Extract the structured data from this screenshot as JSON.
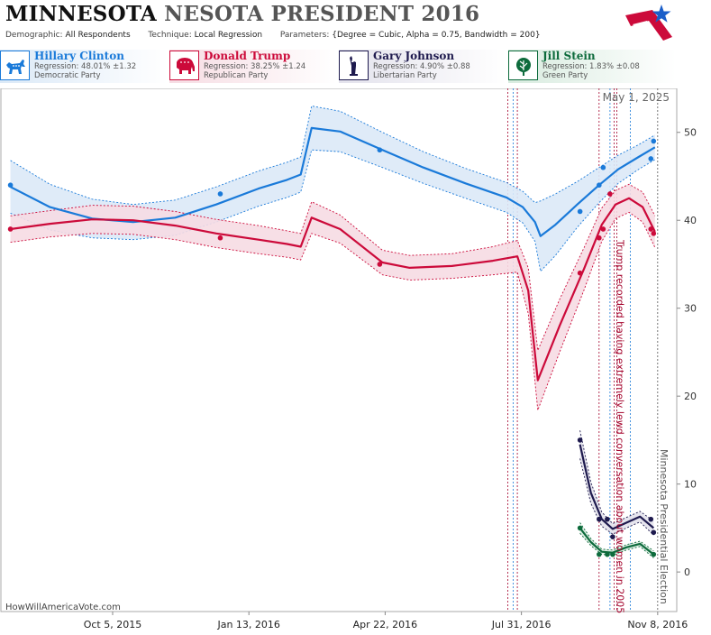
{
  "header": {
    "title_main": "MINNESOTA",
    "title_sub": "NESOTA PRESIDENT 2016",
    "demographic_label": "Demographic:",
    "demographic_value": "All Respondents",
    "technique_label": "Technique:",
    "technique_value": "Local Regression",
    "parameters_label": "Parameters:",
    "parameters_value": "{Degree = Cubic, Alpha = 0.75, Bandwidth = 200}"
  },
  "candidates": [
    {
      "name": "Hillary Clinton",
      "regression": "Regression: 48.01% ±1.32",
      "party": "Democratic Party",
      "color": "#1a7ad9",
      "icon": "donkey-icon"
    },
    {
      "name": "Donald Trump",
      "regression": "Regression: 38.25% ±1.24",
      "party": "Republican Party",
      "color": "#cc0a3a",
      "icon": "elephant-icon"
    },
    {
      "name": "Gary Johnson",
      "regression": "Regression: 4.90% ±0.88",
      "party": "Libertarian Party",
      "color": "#1e1a4e",
      "icon": "liberty-statue-icon"
    },
    {
      "name": "Jill Stein",
      "regression": "Regression: 1.83% ±0.08",
      "party": "Green Party",
      "color": "#0d6b3c",
      "icon": "leaf-icon"
    }
  ],
  "watermark": "HowWillAmericaVote.com",
  "chart_data": {
    "type": "line",
    "date_label": "May 1, 2025",
    "x_ticks": [
      "Oct 5, 2015",
      "Jan 13, 2016",
      "Apr 22, 2016",
      "Jul 31, 2016",
      "Nov 8, 2016"
    ],
    "xlim": [
      "2015-07-15",
      "2016-11-22"
    ],
    "ylim": [
      -4.5,
      55
    ],
    "y_ticks": [
      0,
      10,
      20,
      30,
      40,
      50
    ],
    "grid": false,
    "annotations": [
      {
        "text": "Trump recorded having extremely lewd conversation about women in 2005",
        "date": "2016-10-07",
        "color": "#a3002a"
      },
      {
        "text": "Minnesota Presidential Election",
        "date": "2016-11-08",
        "color": "#555555"
      }
    ],
    "event_lines": [
      {
        "date": "2016-07-21",
        "color": "#a3002a"
      },
      {
        "date": "2016-07-25",
        "color": "#1a7ad9"
      },
      {
        "date": "2016-07-28",
        "color": "#a3002a"
      },
      {
        "date": "2016-09-26",
        "color": "#a3002a"
      },
      {
        "date": "2016-10-04",
        "color": "#1a7ad9"
      },
      {
        "date": "2016-10-07",
        "color": "#a3002a"
      },
      {
        "date": "2016-10-09",
        "color": "#a3002a"
      },
      {
        "date": "2016-10-19",
        "color": "#1a7ad9"
      },
      {
        "date": "2016-11-08",
        "color": "#555555"
      }
    ],
    "series": [
      {
        "name": "Hillary Clinton",
        "color": "#1a7ad9",
        "band_color": "#dbe9f7",
        "points": [
          [
            "2015-07-22",
            44
          ],
          [
            "2015-12-23",
            43
          ],
          [
            "2016-04-18",
            48
          ],
          [
            "2016-09-12",
            41
          ],
          [
            "2016-09-26",
            44
          ],
          [
            "2016-09-29",
            46
          ],
          [
            "2016-11-03",
            47
          ],
          [
            "2016-11-05",
            49
          ]
        ],
        "fit": [
          [
            "2015-07-22",
            43.8
          ],
          [
            "2015-08-20",
            41.5
          ],
          [
            "2015-09-20",
            40.2
          ],
          [
            "2015-10-20",
            39.8
          ],
          [
            "2015-11-20",
            40.3
          ],
          [
            "2015-12-20",
            41.8
          ],
          [
            "2016-01-20",
            43.6
          ],
          [
            "2016-02-10",
            44.6
          ],
          [
            "2016-02-20",
            45.2
          ],
          [
            "2016-02-28",
            50.5
          ],
          [
            "2016-03-20",
            50.1
          ],
          [
            "2016-04-20",
            48.0
          ],
          [
            "2016-05-20",
            46.0
          ],
          [
            "2016-06-20",
            44.2
          ],
          [
            "2016-07-20",
            42.6
          ],
          [
            "2016-08-01",
            41.5
          ],
          [
            "2016-08-10",
            39.8
          ],
          [
            "2016-08-14",
            38.2
          ],
          [
            "2016-08-25",
            39.5
          ],
          [
            "2016-09-10",
            41.8
          ],
          [
            "2016-09-26",
            44.0
          ],
          [
            "2016-10-10",
            45.8
          ],
          [
            "2016-10-25",
            47.2
          ],
          [
            "2016-11-06",
            48.3
          ]
        ],
        "band": [
          3.0,
          2.6,
          2.2,
          2.0,
          2.0,
          2.0,
          2.0,
          2.0,
          2.0,
          2.5,
          2.3,
          2.0,
          1.8,
          1.7,
          1.7,
          1.8,
          2.2,
          4.0,
          3.5,
          2.6,
          2.0,
          1.6,
          1.4,
          1.4
        ]
      },
      {
        "name": "Donald Trump",
        "color": "#cc0a3a",
        "band_color": "#f6dce3",
        "points": [
          [
            "2015-07-22",
            39
          ],
          [
            "2015-12-23",
            38
          ],
          [
            "2016-04-18",
            35
          ],
          [
            "2016-09-12",
            34
          ],
          [
            "2016-09-26",
            38
          ],
          [
            "2016-09-29",
            39
          ],
          [
            "2016-10-04",
            43
          ],
          [
            "2016-11-03",
            39
          ],
          [
            "2016-11-05",
            38.5
          ]
        ],
        "fit": [
          [
            "2015-07-22",
            39.0
          ],
          [
            "2015-08-20",
            39.6
          ],
          [
            "2015-09-20",
            40.1
          ],
          [
            "2015-10-20",
            40.0
          ],
          [
            "2015-11-20",
            39.4
          ],
          [
            "2015-12-20",
            38.5
          ],
          [
            "2016-01-20",
            37.8
          ],
          [
            "2016-02-10",
            37.3
          ],
          [
            "2016-02-20",
            37.0
          ],
          [
            "2016-02-28",
            40.3
          ],
          [
            "2016-03-20",
            39.0
          ],
          [
            "2016-04-20",
            35.2
          ],
          [
            "2016-05-10",
            34.6
          ],
          [
            "2016-06-10",
            34.8
          ],
          [
            "2016-07-10",
            35.4
          ],
          [
            "2016-07-28",
            35.9
          ],
          [
            "2016-08-05",
            32.0
          ],
          [
            "2016-08-12",
            21.8
          ],
          [
            "2016-08-28",
            28.0
          ],
          [
            "2016-09-15",
            34.5
          ],
          [
            "2016-09-28",
            39.5
          ],
          [
            "2016-10-08",
            41.8
          ],
          [
            "2016-10-18",
            42.5
          ],
          [
            "2016-10-28",
            41.5
          ],
          [
            "2016-11-06",
            38.7
          ]
        ],
        "band": [
          1.5,
          1.5,
          1.6,
          1.6,
          1.6,
          1.6,
          1.6,
          1.5,
          1.5,
          1.8,
          1.6,
          1.4,
          1.4,
          1.4,
          1.6,
          1.8,
          2.6,
          3.4,
          3.0,
          2.4,
          1.9,
          1.6,
          1.6,
          1.7,
          1.8
        ]
      },
      {
        "name": "Gary Johnson",
        "color": "#1e1a4e",
        "band_color": "#e3e2ec",
        "points": [
          [
            "2016-09-12",
            15
          ],
          [
            "2016-09-26",
            6
          ],
          [
            "2016-10-02",
            6
          ],
          [
            "2016-10-06",
            4
          ],
          [
            "2016-11-03",
            6
          ],
          [
            "2016-11-05",
            4.5
          ]
        ],
        "fit": [
          [
            "2016-09-12",
            14.5
          ],
          [
            "2016-09-20",
            9.0
          ],
          [
            "2016-09-28",
            6.0
          ],
          [
            "2016-10-06",
            4.9
          ],
          [
            "2016-10-16",
            5.6
          ],
          [
            "2016-10-26",
            6.3
          ],
          [
            "2016-11-05",
            5.0
          ]
        ],
        "band": [
          1.6,
          1.2,
          0.8,
          0.6,
          0.6,
          0.6,
          0.8
        ]
      },
      {
        "name": "Jill Stein",
        "color": "#0d6b3c",
        "band_color": "#d8ebdf",
        "points": [
          [
            "2016-09-12",
            5
          ],
          [
            "2016-09-26",
            2
          ],
          [
            "2016-10-02",
            2
          ],
          [
            "2016-10-06",
            2
          ],
          [
            "2016-11-05",
            2
          ]
        ],
        "fit": [
          [
            "2016-09-12",
            5.0
          ],
          [
            "2016-09-20",
            3.4
          ],
          [
            "2016-09-28",
            2.3
          ],
          [
            "2016-10-06",
            2.2
          ],
          [
            "2016-10-16",
            2.8
          ],
          [
            "2016-10-26",
            3.2
          ],
          [
            "2016-11-05",
            2.0
          ]
        ],
        "band": [
          0.6,
          0.4,
          0.3,
          0.3,
          0.3,
          0.3,
          0.4
        ]
      }
    ]
  }
}
